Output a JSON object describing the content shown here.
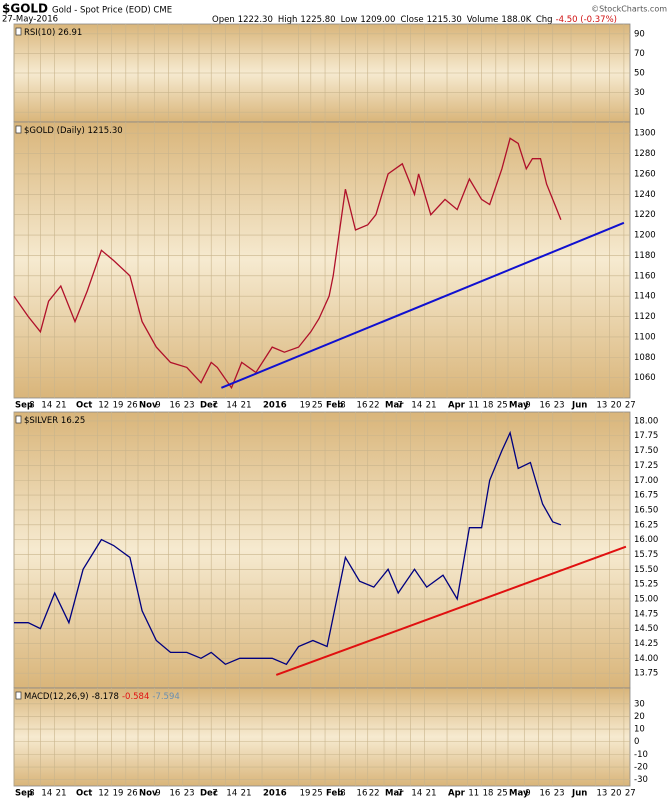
{
  "header": {
    "symbol": "$GOLD",
    "description": "Gold - Spot Price (EOD) CME",
    "date": "27-May-2016",
    "quote": [
      {
        "label": "Open",
        "value": "1222.30"
      },
      {
        "label": "High",
        "value": "1225.80"
      },
      {
        "label": "Low",
        "value": "1209.00"
      },
      {
        "label": "Close",
        "value": "1215.30"
      },
      {
        "label": "Volume",
        "value": "188.0K"
      },
      {
        "label": "Chg",
        "value": "-4.50 (-0.37%)"
      }
    ],
    "credit": "©StockCharts.com"
  },
  "xaxis": {
    "xlim": [
      0,
      303
    ],
    "xticks": [
      {
        "value": 0,
        "label": "Sep"
      },
      {
        "value": 7,
        "label": "8"
      },
      {
        "value": 13,
        "label": "14"
      },
      {
        "value": 20,
        "label": "21"
      },
      {
        "value": 30,
        "label": "Oct"
      },
      {
        "value": 41,
        "label": "12"
      },
      {
        "value": 48,
        "label": "19"
      },
      {
        "value": 55,
        "label": "26"
      },
      {
        "value": 61,
        "label": "Nov"
      },
      {
        "value": 69,
        "label": "9"
      },
      {
        "value": 76,
        "label": "16"
      },
      {
        "value": 83,
        "label": "23"
      },
      {
        "value": 91,
        "label": "Dec"
      },
      {
        "value": 97,
        "label": "7"
      },
      {
        "value": 104,
        "label": "14"
      },
      {
        "value": 111,
        "label": "21"
      },
      {
        "value": 122,
        "label": "2016"
      },
      {
        "value": 140,
        "label": "19"
      },
      {
        "value": 146,
        "label": "25"
      },
      {
        "value": 153,
        "label": "Feb"
      },
      {
        "value": 160,
        "label": "8"
      },
      {
        "value": 168,
        "label": "16"
      },
      {
        "value": 174,
        "label": "22"
      },
      {
        "value": 182,
        "label": "Mar"
      },
      {
        "value": 188,
        "label": "7"
      },
      {
        "value": 195,
        "label": "14"
      },
      {
        "value": 202,
        "label": "21"
      },
      {
        "value": 213,
        "label": "Apr"
      },
      {
        "value": 223,
        "label": "11"
      },
      {
        "value": 230,
        "label": "18"
      },
      {
        "value": 237,
        "label": "25"
      },
      {
        "value": 243,
        "label": "May"
      },
      {
        "value": 251,
        "label": "9"
      },
      {
        "value": 258,
        "label": "16"
      },
      {
        "value": 265,
        "label": "23"
      },
      {
        "value": 274,
        "label": "Jun"
      },
      {
        "value": 286,
        "label": "13"
      },
      {
        "value": 293,
        "label": "20"
      },
      {
        "value": 300,
        "label": "27"
      }
    ]
  },
  "chart_data": [
    {
      "type": "line",
      "title": "RSI(10) 26.91",
      "ylim": [
        0,
        100
      ],
      "yticks": [
        10,
        30,
        50,
        70,
        90
      ],
      "grid": true
    },
    {
      "type": "line",
      "title": "$GOLD (Daily) 1215.30",
      "ylim": [
        1040,
        1311
      ],
      "yticks": [
        1060,
        1080,
        1100,
        1120,
        1140,
        1160,
        1180,
        1200,
        1220,
        1240,
        1260,
        1280,
        1300
      ],
      "grid": true,
      "x": [
        0,
        7,
        13,
        17,
        23,
        30,
        36,
        43,
        49,
        57,
        63,
        70,
        77,
        85,
        92,
        97,
        100,
        107,
        112,
        119,
        127,
        133,
        140,
        146,
        150,
        155,
        157,
        163,
        168,
        174,
        178,
        184,
        191,
        197,
        199,
        205,
        212,
        218,
        224,
        230,
        234,
        240,
        244,
        248,
        252,
        255,
        259,
        262,
        266,
        269
      ],
      "series": [
        {
          "name": "$GOLD",
          "color": "#b0102a",
          "values": [
            1140,
            1120,
            1105,
            1135,
            1150,
            1115,
            1145,
            1185,
            1175,
            1160,
            1115,
            1090,
            1075,
            1070,
            1055,
            1075,
            1070,
            1050,
            1075,
            1065,
            1090,
            1085,
            1090,
            1105,
            1118,
            1140,
            1160,
            1245,
            1205,
            1210,
            1220,
            1260,
            1270,
            1240,
            1260,
            1220,
            1235,
            1225,
            1255,
            1235,
            1230,
            1265,
            1295,
            1290,
            1265,
            1275,
            1275,
            1250,
            1230,
            1215
          ]
        }
      ],
      "trendline": {
        "x": [
          102,
          300
        ],
        "values": [
          1050,
          1212
        ],
        "color": "#1010d0"
      }
    },
    {
      "type": "line",
      "title": "$SILVER 16.25",
      "ylim": [
        13.5,
        18.15
      ],
      "yticks": [
        {
          "value": 13.75,
          "label": "13.75"
        },
        {
          "value": 14,
          "label": "14.00"
        },
        {
          "value": 14.25,
          "label": "14.25"
        },
        {
          "value": 14.5,
          "label": "14.50"
        },
        {
          "value": 14.75,
          "label": "14.75"
        },
        {
          "value": 15,
          "label": "15.00"
        },
        {
          "value": 15.25,
          "label": "15.25"
        },
        {
          "value": 15.5,
          "label": "15.50"
        },
        {
          "value": 15.75,
          "label": "15.75"
        },
        {
          "value": 16,
          "label": "16.00"
        },
        {
          "value": 16.25,
          "label": "16.25"
        },
        {
          "value": 16.5,
          "label": "16.50"
        },
        {
          "value": 16.75,
          "label": "16.75"
        },
        {
          "value": 17,
          "label": "17.00"
        },
        {
          "value": 17.25,
          "label": "17.25"
        },
        {
          "value": 17.5,
          "label": "17.50"
        },
        {
          "value": 17.75,
          "label": "17.75"
        },
        {
          "value": 18,
          "label": "18.00"
        }
      ],
      "grid": true,
      "x": [
        0,
        7,
        13,
        20,
        27,
        34,
        43,
        49,
        57,
        63,
        70,
        77,
        85,
        92,
        97,
        104,
        111,
        119,
        127,
        134,
        140,
        147,
        154,
        160,
        163,
        170,
        177,
        184,
        189,
        197,
        203,
        211,
        218,
        224,
        230,
        234,
        240,
        244,
        248,
        254,
        260,
        265,
        269
      ],
      "series": [
        {
          "name": "$SILVER",
          "color": "#000080",
          "values": [
            14.6,
            14.6,
            14.5,
            15.1,
            14.6,
            15.5,
            16.0,
            15.9,
            15.7,
            14.8,
            14.3,
            14.1,
            14.1,
            14.0,
            14.1,
            13.9,
            14.0,
            14.0,
            14.0,
            13.9,
            14.2,
            14.3,
            14.2,
            15.2,
            15.7,
            15.3,
            15.2,
            15.5,
            15.1,
            15.5,
            15.2,
            15.4,
            15.0,
            16.2,
            16.2,
            17.0,
            17.5,
            17.8,
            17.2,
            17.3,
            16.6,
            16.3,
            16.25
          ]
        }
      ],
      "trendline": {
        "x": [
          129,
          301
        ],
        "values": [
          13.72,
          15.88
        ],
        "color": "#e01010"
      }
    },
    {
      "type": "line",
      "title": "MACD(12,26,9)",
      "subtitles": [
        {
          "text": "-8.178",
          "color": "#000"
        },
        {
          "text": "-0.584",
          "color": "#e01010"
        },
        {
          "text": "-7.594",
          "color": "#6a8fb0"
        }
      ],
      "ylim": [
        -35,
        42.5
      ],
      "yticks": [
        -30,
        -20,
        -10,
        0,
        10,
        20,
        30
      ],
      "grid": true
    }
  ]
}
